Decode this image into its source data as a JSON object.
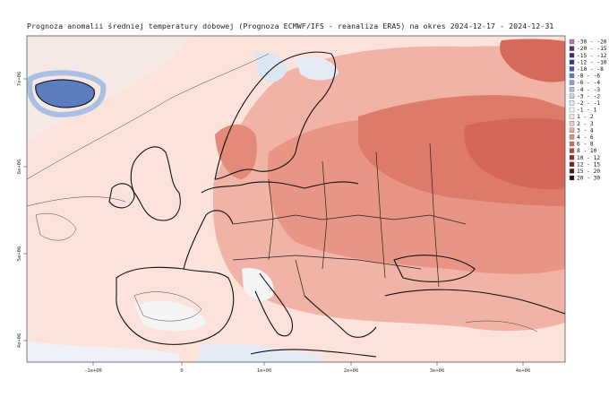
{
  "title": "Prognoza anomalii średniej temperatury dobowej (Prognoza ECMWF/IFS - reanaliza ERA5) na okres 2024-12-17 - 2024-12-31",
  "x_ticks": [
    "-1e+06",
    "0",
    "1e+06",
    "2e+06",
    "3e+06",
    "4e+06"
  ],
  "y_ticks": [
    "7e+06",
    "6e+06",
    "5e+06",
    "4e+06"
  ],
  "legend": [
    {
      "label": "-30 - -20",
      "color": "#c06aa8"
    },
    {
      "label": "-20 - -15",
      "color": "#5e2e6a"
    },
    {
      "label": "-15 - -12",
      "color": "#3f2a74"
    },
    {
      "label": "-12 - -10",
      "color": "#2f3c86"
    },
    {
      "label": "-10 - -8",
      "color": "#3f5aa6"
    },
    {
      "label": "-8 - -6",
      "color": "#5b7dc0"
    },
    {
      "label": "-6 - -4",
      "color": "#86a3d4"
    },
    {
      "label": "-4 - -3",
      "color": "#a9c0e2"
    },
    {
      "label": "-3 - -2",
      "color": "#c6d6ec"
    },
    {
      "label": "-2 - -1",
      "color": "#dde7f4"
    },
    {
      "label": "-1 - 1",
      "color": "#f4f4f4"
    },
    {
      "label": "1 - 2",
      "color": "#fbe3dc"
    },
    {
      "label": "2 - 3",
      "color": "#f6c9bd"
    },
    {
      "label": "3 - 4",
      "color": "#eeaa9a"
    },
    {
      "label": "4 - 6",
      "color": "#e38a79"
    },
    {
      "label": "6 - 8",
      "color": "#d66a5c"
    },
    {
      "label": "8 - 10",
      "color": "#bf4438"
    },
    {
      "label": "10 - 12",
      "color": "#9c2a22"
    },
    {
      "label": "12 - 15",
      "color": "#7a1c18"
    },
    {
      "label": "15 - 20",
      "color": "#531312"
    },
    {
      "label": "20 - 30",
      "color": "#2e0a0a"
    }
  ]
}
